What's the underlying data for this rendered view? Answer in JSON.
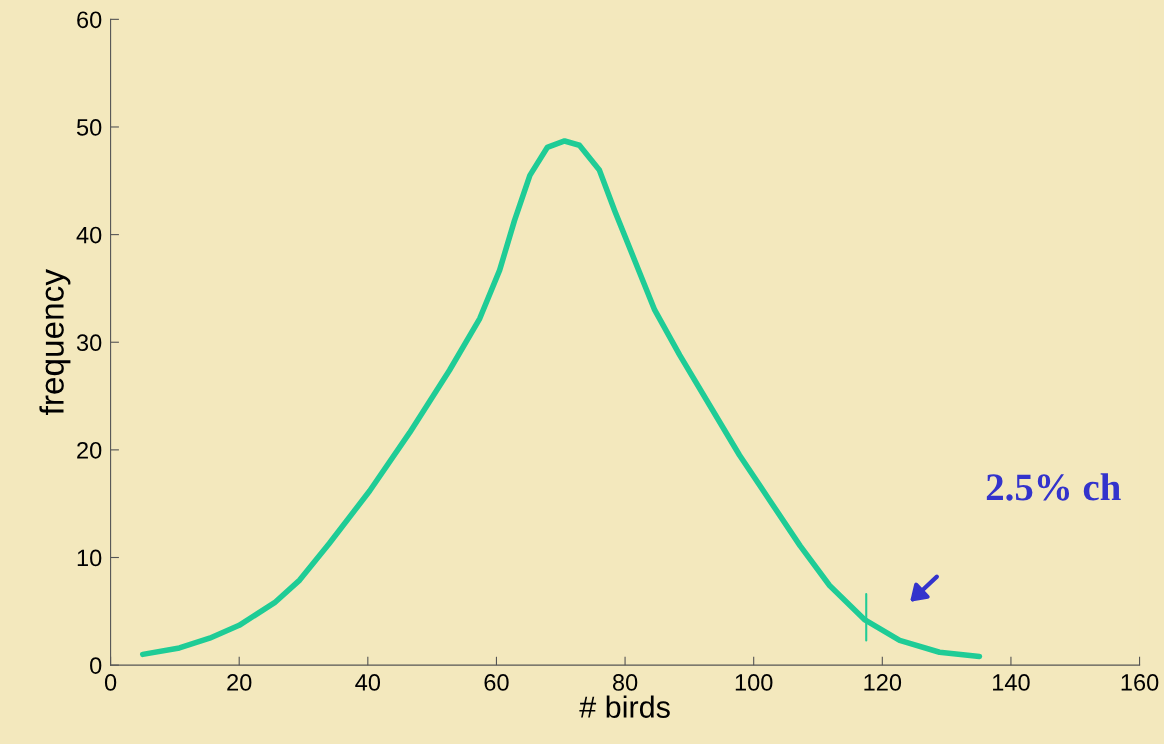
{
  "chart_data": {
    "type": "line",
    "xlabel": "# birds",
    "ylabel": "frequency",
    "xlim": [
      0,
      160
    ],
    "xticks": [
      0,
      20,
      40,
      60,
      80,
      100,
      120,
      140,
      160
    ],
    "ylim": [
      0,
      60
    ],
    "yticks": [
      0,
      10,
      20,
      30,
      40,
      50,
      60
    ],
    "grid": false,
    "marker": "none",
    "line_style": "solid",
    "series": [
      {
        "color": "#1fcc96",
        "x": [
          5,
          10.7,
          15.4,
          20,
          25.5,
          29.4,
          34,
          40.3,
          46.5,
          52.7,
          57.4,
          60.5,
          62.8,
          65.2,
          67.9,
          70.6,
          72.9,
          76,
          78.4,
          81.5,
          84.6,
          88.5,
          93.2,
          97.8,
          102.5,
          107.2,
          111.8,
          117.3,
          122.7,
          128.9,
          135.1
        ],
        "values": [
          1.0,
          1.6,
          2.5,
          3.7,
          5.8,
          7.9,
          11.3,
          16.2,
          21.6,
          27.4,
          32.2,
          36.7,
          41.3,
          45.5,
          48.1,
          48.7,
          48.3,
          46,
          42.2,
          37.6,
          33,
          28.8,
          24.1,
          19.5,
          15.3,
          11.1,
          7.4,
          4.2,
          2.3,
          1.2,
          0.8
        ]
      },
      {
        "color": "#1fcc96",
        "x": [
          117.5,
          117.5
        ],
        "values": [
          2.3,
          6.6
        ]
      }
    ],
    "annotations": [
      "2.5% ch"
    ]
  }
}
